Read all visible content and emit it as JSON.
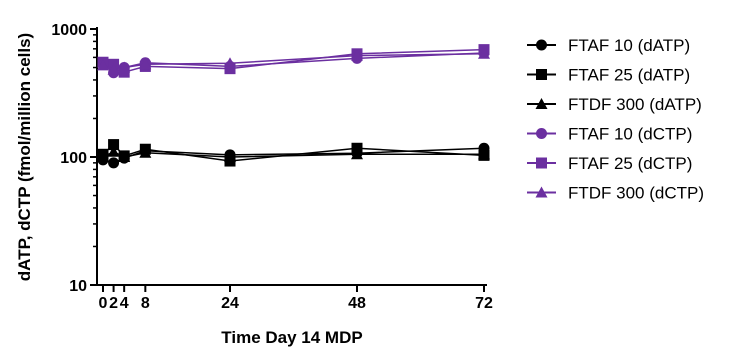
{
  "chart_data": {
    "type": "line",
    "xlabel": "Time Day 14 MDP",
    "ylabel": "dATP, dCTP (fmol/million cells)",
    "yscale": "log",
    "ylim": [
      10,
      1000
    ],
    "xlim": [
      0,
      72
    ],
    "x_ticks": [
      "0",
      "2",
      "4",
      "8",
      "24",
      "48",
      "72"
    ],
    "y_ticks": [
      "10",
      "100",
      "1000"
    ],
    "grid": false,
    "legend_position": "right",
    "x": [
      0,
      2,
      4,
      8,
      24,
      48,
      72
    ],
    "series": [
      {
        "name": "FTAF 10 (dATP)",
        "marker": "circle",
        "color": "#000000",
        "values": [
          95,
          90,
          98,
          112,
          104,
          107,
          117
        ]
      },
      {
        "name": "FTAF 25 (dATP)",
        "marker": "square",
        "color": "#000000",
        "values": [
          105,
          125,
          102,
          115,
          93,
          117,
          103
        ]
      },
      {
        "name": "FTDF 300 (dATP)",
        "marker": "triangle",
        "color": "#000000",
        "values": [
          100,
          110,
          100,
          108,
          100,
          105,
          105
        ]
      },
      {
        "name": "FTAF 10 (dCTP)",
        "marker": "circle",
        "color": "#6b2fa0",
        "values": [
          540,
          455,
          500,
          545,
          510,
          590,
          650
        ]
      },
      {
        "name": "FTAF 25 (dCTP)",
        "marker": "square",
        "color": "#6b2fa0",
        "values": [
          550,
          530,
          460,
          510,
          490,
          640,
          690
        ]
      },
      {
        "name": "FTDF 300 (dCTP)",
        "marker": "triangle",
        "color": "#6b2fa0",
        "values": [
          520,
          480,
          500,
          530,
          540,
          620,
          640
        ]
      }
    ]
  }
}
